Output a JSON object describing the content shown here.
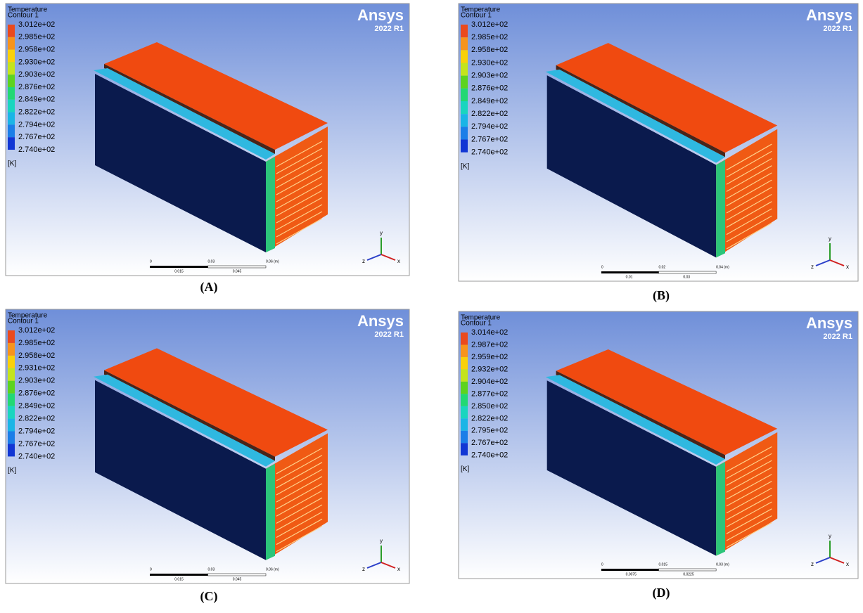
{
  "panels": [
    {
      "caption": "(A)",
      "brand": "Ansys",
      "version": "2022 R1",
      "legend": {
        "title": "Temperature",
        "subtitle": "Contour 1",
        "unit": "[K]",
        "labels": [
          "3.012e+02",
          "2.985e+02",
          "2.958e+02",
          "2.930e+02",
          "2.903e+02",
          "2.876e+02",
          "2.849e+02",
          "2.822e+02",
          "2.794e+02",
          "2.767e+02",
          "2.740e+02"
        ]
      },
      "scale": {
        "top": [
          "0",
          "0.03",
          "0.06 (m)"
        ],
        "bottom": [
          "0.015",
          "0.045"
        ]
      },
      "triad": [
        "y",
        "z",
        "x"
      ]
    },
    {
      "caption": "(B)",
      "brand": "Ansys",
      "version": "2022 R1",
      "legend": {
        "title": "Temperature",
        "subtitle": "Contour 1",
        "unit": "[K]",
        "labels": [
          "3.012e+02",
          "2.985e+02",
          "2.958e+02",
          "2.930e+02",
          "2.903e+02",
          "2.876e+02",
          "2.849e+02",
          "2.822e+02",
          "2.794e+02",
          "2.767e+02",
          "2.740e+02"
        ]
      },
      "scale": {
        "top": [
          "0",
          "0.02",
          "0.04 (m)"
        ],
        "bottom": [
          "0.01",
          "0.03"
        ]
      },
      "triad": [
        "y",
        "z",
        "x"
      ]
    },
    {
      "caption": "(C)",
      "brand": "Ansys",
      "version": "2022 R1",
      "legend": {
        "title": "Temperature",
        "subtitle": "Contour 1",
        "unit": "[K]",
        "labels": [
          "3.012e+02",
          "2.985e+02",
          "2.958e+02",
          "2.931e+02",
          "2.903e+02",
          "2.876e+02",
          "2.849e+02",
          "2.822e+02",
          "2.794e+02",
          "2.767e+02",
          "2.740e+02"
        ]
      },
      "scale": {
        "top": [
          "0",
          "0.03",
          "0.06 (m)"
        ],
        "bottom": [
          "0.015",
          "0.045"
        ]
      },
      "triad": [
        "y",
        "z",
        "x"
      ]
    },
    {
      "caption": "(D)",
      "brand": "Ansys",
      "version": "2022 R1",
      "legend": {
        "title": "Temperature",
        "subtitle": "Contour 1",
        "unit": "[K]",
        "labels": [
          "3.014e+02",
          "2.987e+02",
          "2.959e+02",
          "2.932e+02",
          "2.904e+02",
          "2.877e+02",
          "2.850e+02",
          "2.822e+02",
          "2.795e+02",
          "2.767e+02",
          "2.740e+02"
        ]
      },
      "scale": {
        "top": [
          "0",
          "0.015",
          "0.03 (m)"
        ],
        "bottom": [
          "0.0075",
          "0.0225"
        ]
      },
      "triad": [
        "y",
        "z",
        "x"
      ]
    }
  ]
}
